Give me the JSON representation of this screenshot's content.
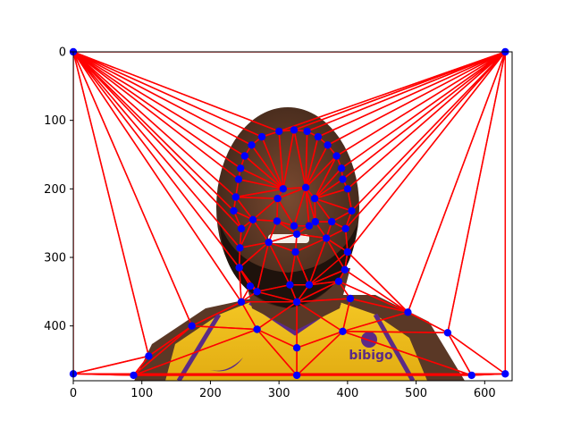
{
  "chart_data": {
    "type": "scatter",
    "subtype": "delaunay-triangulation-over-photo",
    "title": "",
    "xlabel": "",
    "ylabel": "",
    "xlim": [
      0,
      640
    ],
    "ylim": [
      480,
      0
    ],
    "y_inverted": true,
    "x_ticks": [
      "0",
      "100",
      "200",
      "300",
      "400",
      "500",
      "600"
    ],
    "y_ticks": [
      "0",
      "100",
      "200",
      "300",
      "400"
    ],
    "grid": false,
    "legend": "none",
    "edge_color": "#ff0000",
    "point_color": "#0000ff",
    "background_image": "portrait-photo",
    "points": [
      [
        0,
        0
      ],
      [
        630,
        0
      ],
      [
        0,
        470
      ],
      [
        630,
        470
      ],
      [
        88,
        472
      ],
      [
        326,
        472
      ],
      [
        581,
        472
      ],
      [
        110,
        444
      ],
      [
        173,
        400
      ],
      [
        488,
        380
      ],
      [
        546,
        410
      ],
      [
        268,
        405
      ],
      [
        326,
        432
      ],
      [
        393,
        408
      ],
      [
        245,
        365
      ],
      [
        326,
        365
      ],
      [
        404,
        360
      ],
      [
        258,
        342
      ],
      [
        268,
        350
      ],
      [
        316,
        340
      ],
      [
        344,
        340
      ],
      [
        387,
        335
      ],
      [
        396,
        318
      ],
      [
        242,
        315
      ],
      [
        324,
        292
      ],
      [
        400,
        292
      ],
      [
        243,
        286
      ],
      [
        245,
        258
      ],
      [
        234,
        232
      ],
      [
        237,
        212
      ],
      [
        241,
        186
      ],
      [
        244,
        170
      ],
      [
        250,
        152
      ],
      [
        260,
        136
      ],
      [
        275,
        124
      ],
      [
        300,
        116
      ],
      [
        322,
        114
      ],
      [
        341,
        116
      ],
      [
        357,
        124
      ],
      [
        371,
        136
      ],
      [
        384,
        152
      ],
      [
        391,
        170
      ],
      [
        393,
        186
      ],
      [
        400,
        200
      ],
      [
        406,
        232
      ],
      [
        397,
        258
      ],
      [
        262,
        245
      ],
      [
        285,
        278
      ],
      [
        297,
        247
      ],
      [
        306,
        200
      ],
      [
        298,
        214
      ],
      [
        339,
        198
      ],
      [
        352,
        214
      ],
      [
        322,
        254
      ],
      [
        326,
        266
      ],
      [
        344,
        254
      ],
      [
        353,
        248
      ],
      [
        377,
        248
      ],
      [
        369,
        272
      ]
    ],
    "triangles": [
      [
        0,
        34,
        35
      ],
      [
        0,
        35,
        1
      ],
      [
        35,
        36,
        1
      ],
      [
        36,
        37,
        1
      ],
      [
        37,
        38,
        1
      ],
      [
        38,
        39,
        1
      ],
      [
        39,
        40,
        1
      ],
      [
        40,
        41,
        1
      ],
      [
        41,
        42,
        1
      ],
      [
        42,
        43,
        1
      ],
      [
        43,
        44,
        1
      ],
      [
        44,
        45,
        1
      ],
      [
        0,
        33,
        34
      ],
      [
        0,
        32,
        33
      ],
      [
        0,
        31,
        32
      ],
      [
        0,
        30,
        31
      ],
      [
        0,
        29,
        30
      ],
      [
        0,
        28,
        29
      ],
      [
        0,
        27,
        28
      ],
      [
        0,
        26,
        27
      ],
      [
        0,
        23,
        26
      ],
      [
        0,
        14,
        23
      ],
      [
        0,
        8,
        14
      ],
      [
        0,
        7,
        8
      ],
      [
        0,
        2,
        7
      ],
      [
        2,
        4,
        7
      ],
      [
        2,
        3,
        4
      ],
      [
        4,
        3,
        5
      ],
      [
        5,
        3,
        6
      ],
      [
        6,
        3,
        10
      ],
      [
        3,
        1,
        10
      ],
      [
        1,
        9,
        10
      ],
      [
        1,
        25,
        9
      ],
      [
        1,
        45,
        25
      ],
      [
        25,
        22,
        9
      ],
      [
        22,
        21,
        9
      ],
      [
        21,
        16,
        9
      ],
      [
        16,
        13,
        9
      ],
      [
        13,
        10,
        9
      ],
      [
        13,
        6,
        10
      ],
      [
        13,
        5,
        6
      ],
      [
        4,
        7,
        8
      ],
      [
        4,
        8,
        11
      ],
      [
        4,
        11,
        5
      ],
      [
        11,
        12,
        5
      ],
      [
        12,
        13,
        5
      ],
      [
        8,
        14,
        11
      ],
      [
        14,
        15,
        11
      ],
      [
        15,
        12,
        11
      ],
      [
        15,
        13,
        12
      ],
      [
        15,
        16,
        13
      ],
      [
        14,
        18,
        15
      ],
      [
        14,
        17,
        18
      ],
      [
        14,
        23,
        17
      ],
      [
        18,
        19,
        15
      ],
      [
        19,
        20,
        15
      ],
      [
        20,
        21,
        15
      ],
      [
        21,
        16,
        15
      ],
      [
        20,
        22,
        21
      ],
      [
        25,
        22,
        20
      ],
      [
        23,
        17,
        18
      ],
      [
        23,
        26,
        47
      ],
      [
        23,
        47,
        18
      ],
      [
        47,
        19,
        18
      ],
      [
        47,
        24,
        19
      ],
      [
        24,
        20,
        19
      ],
      [
        24,
        58,
        20
      ],
      [
        58,
        22,
        20
      ],
      [
        58,
        25,
        22
      ],
      [
        58,
        45,
        25
      ],
      [
        26,
        27,
        46
      ],
      [
        26,
        46,
        47
      ],
      [
        27,
        28,
        46
      ],
      [
        28,
        29,
        46
      ],
      [
        29,
        30,
        49
      ],
      [
        29,
        49,
        50
      ],
      [
        29,
        50,
        46
      ],
      [
        30,
        31,
        49
      ],
      [
        31,
        32,
        49
      ],
      [
        32,
        33,
        49
      ],
      [
        33,
        34,
        49
      ],
      [
        34,
        35,
        49
      ],
      [
        35,
        36,
        49
      ],
      [
        36,
        51,
        49
      ],
      [
        36,
        37,
        51
      ],
      [
        37,
        38,
        51
      ],
      [
        38,
        39,
        51
      ],
      [
        39,
        40,
        51
      ],
      [
        40,
        52,
        51
      ],
      [
        40,
        41,
        52
      ],
      [
        41,
        42,
        52
      ],
      [
        42,
        43,
        52
      ],
      [
        43,
        44,
        52
      ],
      [
        44,
        57,
        52
      ],
      [
        44,
        45,
        57
      ],
      [
        45,
        58,
        57
      ],
      [
        46,
        48,
        47
      ],
      [
        46,
        50,
        48
      ],
      [
        50,
        49,
        51
      ],
      [
        50,
        51,
        53
      ],
      [
        50,
        53,
        48
      ],
      [
        51,
        52,
        56
      ],
      [
        51,
        56,
        55
      ],
      [
        51,
        55,
        53
      ],
      [
        52,
        57,
        56
      ],
      [
        48,
        53,
        54
      ],
      [
        48,
        54,
        47
      ],
      [
        47,
        54,
        24
      ],
      [
        53,
        55,
        54
      ],
      [
        55,
        56,
        54
      ],
      [
        56,
        57,
        58
      ],
      [
        56,
        58,
        54
      ],
      [
        54,
        58,
        24
      ]
    ]
  }
}
